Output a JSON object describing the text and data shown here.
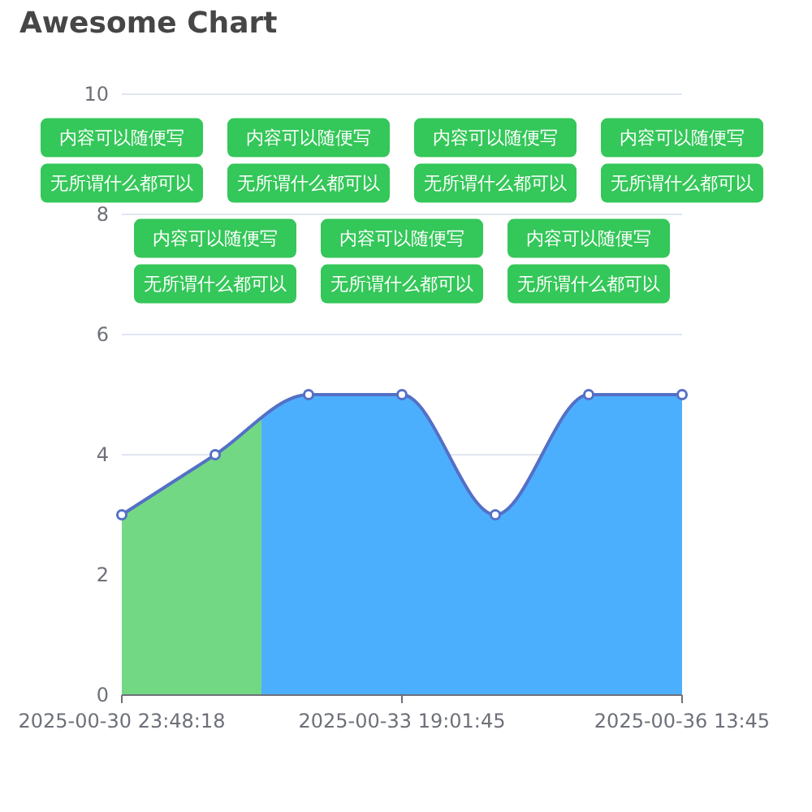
{
  "chart_data": {
    "type": "area",
    "title": "Awesome Chart",
    "categories": [
      "2025-00-30 23:48:18",
      null,
      null,
      "2025-00-33 19:01:45",
      null,
      null,
      "2025-00-36 13:45"
    ],
    "series": [
      {
        "color": "#5470c6",
        "colors": [
          "#73d884",
          "#73d884",
          "#4caffe",
          "#4caffe",
          "#4caffe",
          "#4caffe",
          "#4caffe"
        ],
        "values": [
          3,
          4,
          5,
          5,
          3,
          5,
          5
        ]
      }
    ],
    "ylim": [
      0,
      10
    ],
    "yticks": [
      0,
      2,
      4,
      6,
      8,
      10
    ],
    "grid": "y",
    "marker": "circle",
    "annotations": [
      "内容可以随便写",
      "无所谓什么都可以",
      "内容可以随便写",
      "无所谓什么都可以",
      "内容可以随便写",
      "无所谓什么都可以",
      "内容可以随便写",
      "无所谓什么都可以",
      "内容可以随便写",
      "无所谓什么都可以",
      "内容可以随便写",
      "无所谓什么都可以",
      "内容可以随便写",
      "无所谓什么都可以"
    ]
  }
}
